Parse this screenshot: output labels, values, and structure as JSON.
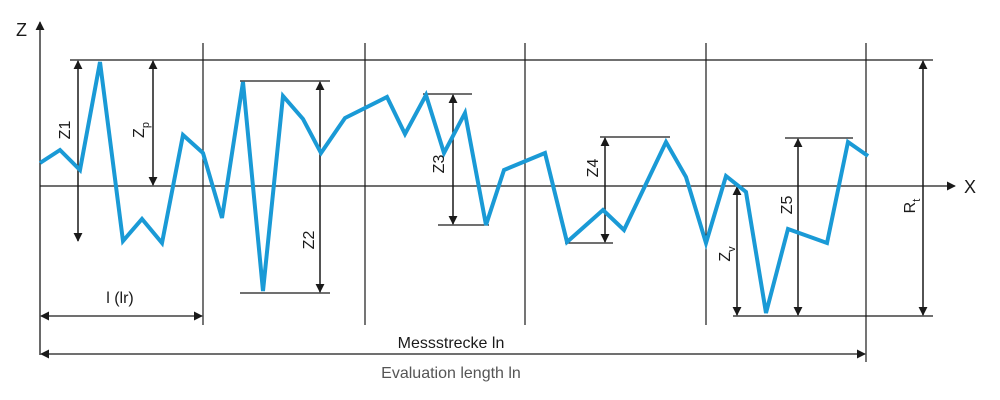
{
  "axes": {
    "z_label": "Z",
    "x_label": "X"
  },
  "labels": {
    "z1": "Z1",
    "zp_main": "Z",
    "zp_sub": "p",
    "z2": "Z2",
    "z3": "Z3",
    "z4": "Z4",
    "zv_main": "Z",
    "zv_sub": "v",
    "z5": "Z5",
    "rt_main": "R",
    "rt_sub": "t",
    "sampling_length": "l (lr)",
    "measuring_length": "Messstrecke ln",
    "evaluation_length": "Evaluation length ln"
  },
  "colors": {
    "profile": "#1a9ad6",
    "lines": "#1a1a1a",
    "caption": "#555555"
  }
}
